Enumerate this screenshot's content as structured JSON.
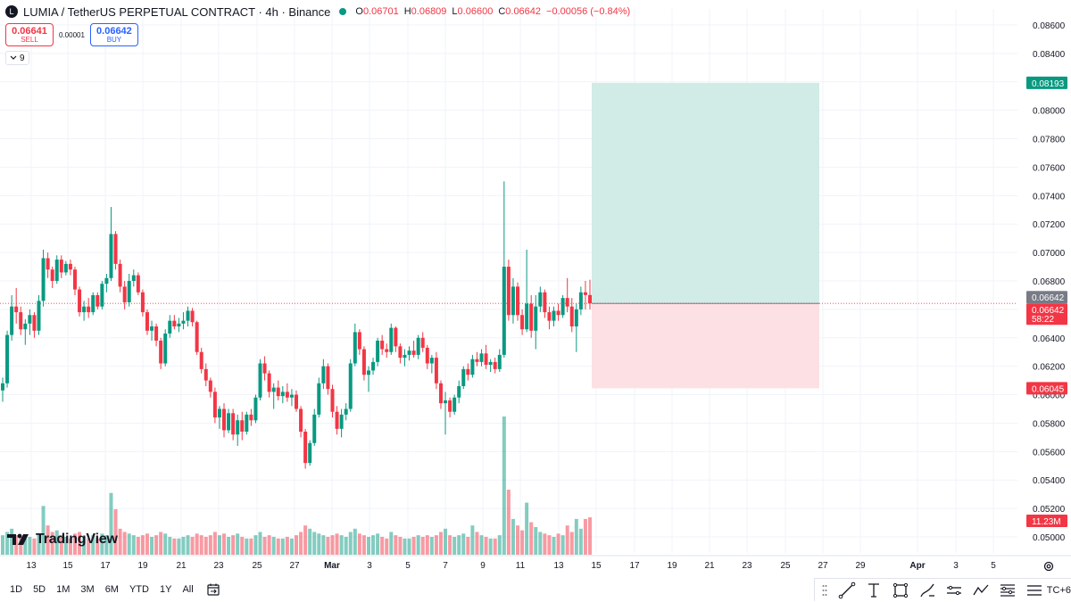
{
  "header": {
    "symbol_icon": "L",
    "title": "LUMIA / TetherUS PERPETUAL CONTRACT · 4h · Binance",
    "ohlc": [
      {
        "k": "O",
        "v": "0.06701"
      },
      {
        "k": "H",
        "v": "0.06809"
      },
      {
        "k": "L",
        "v": "0.06600"
      },
      {
        "k": "C",
        "v": "0.06642"
      },
      {
        "k": "",
        "v": "−0.00056 (−0.84%)"
      }
    ]
  },
  "trade": {
    "sell_price": "0.06641",
    "sell_label": "SELL",
    "spread": "0.00001",
    "buy_price": "0.06642",
    "buy_label": "BUY"
  },
  "indicators": {
    "count": "9"
  },
  "watermark": {
    "text": "TradingView"
  },
  "price_axis": {
    "ticks": [
      "0.08600",
      "0.08400",
      "0.08200",
      "0.08000",
      "0.07800",
      "0.07600",
      "0.07400",
      "0.07200",
      "0.07000",
      "0.06800",
      "0.06600",
      "0.06400",
      "0.06200",
      "0.06000",
      "0.05800",
      "0.05600",
      "0.05400",
      "0.05200",
      "0.05000"
    ],
    "labels": [
      {
        "text": "0.08193",
        "value": 0.08193,
        "color": "#089981"
      },
      {
        "text": "0.06642",
        "value": 0.06642,
        "color": "#787b86"
      },
      {
        "text": "0.06642",
        "value": 0.06642,
        "color": "#f23645",
        "sub": "58:22"
      },
      {
        "text": "0.06045",
        "value": 0.06045,
        "color": "#f23645"
      },
      {
        "text": "11.23M",
        "value": null,
        "color": "#f23645"
      }
    ]
  },
  "time_axis": {
    "labels": [
      "13",
      "15",
      "17",
      "19",
      "21",
      "23",
      "25",
      "27",
      "Mar",
      "3",
      "5",
      "7",
      "9",
      "11",
      "13",
      "15",
      "17",
      "19",
      "21",
      "23",
      "25",
      "27",
      "29",
      "Apr",
      "3",
      "5"
    ]
  },
  "position": {
    "entry": 0.06642,
    "target": 0.08193,
    "stop": 0.06045,
    "target_color": "#d1ebe6",
    "stop_color": "#fde0e3"
  },
  "timeframes": [
    "1D",
    "5D",
    "1M",
    "3M",
    "6M",
    "YTD",
    "1Y",
    "All"
  ],
  "drawing_tools": {
    "icons": [
      "drag-handle-icon",
      "trend-line-icon",
      "text-cursor-icon",
      "rectangle-icon",
      "brush-icon",
      "parallel-channel-icon",
      "polyline-icon",
      "fib-retracement-icon",
      "more-tools-icon"
    ],
    "timezone": "TC+6"
  },
  "chart_data": {
    "type": "candlestick",
    "interval": "4h",
    "ylim": [
      0.0495,
      0.0875
    ],
    "colors": {
      "up": "#089981",
      "down": "#f23645"
    },
    "candles": [
      {
        "o": 0.0603,
        "h": 0.0612,
        "l": 0.0595,
        "c": 0.0608,
        "v": 12
      },
      {
        "o": 0.0608,
        "h": 0.0645,
        "l": 0.0605,
        "c": 0.0642,
        "v": 14
      },
      {
        "o": 0.0642,
        "h": 0.067,
        "l": 0.0638,
        "c": 0.0662,
        "v": 16
      },
      {
        "o": 0.0662,
        "h": 0.0675,
        "l": 0.065,
        "c": 0.0658,
        "v": 12
      },
      {
        "o": 0.0658,
        "h": 0.0662,
        "l": 0.0642,
        "c": 0.0646,
        "v": 11
      },
      {
        "o": 0.0646,
        "h": 0.0653,
        "l": 0.0635,
        "c": 0.065,
        "v": 10
      },
      {
        "o": 0.065,
        "h": 0.066,
        "l": 0.0642,
        "c": 0.0656,
        "v": 11
      },
      {
        "o": 0.0656,
        "h": 0.0658,
        "l": 0.064,
        "c": 0.0645,
        "v": 10
      },
      {
        "o": 0.0645,
        "h": 0.067,
        "l": 0.0642,
        "c": 0.0666,
        "v": 13
      },
      {
        "o": 0.0666,
        "h": 0.0702,
        "l": 0.0662,
        "c": 0.0696,
        "v": 30
      },
      {
        "o": 0.0696,
        "h": 0.07,
        "l": 0.0682,
        "c": 0.0688,
        "v": 18
      },
      {
        "o": 0.0688,
        "h": 0.069,
        "l": 0.0675,
        "c": 0.068,
        "v": 14
      },
      {
        "o": 0.068,
        "h": 0.0698,
        "l": 0.0678,
        "c": 0.0695,
        "v": 15
      },
      {
        "o": 0.0695,
        "h": 0.0698,
        "l": 0.0682,
        "c": 0.0686,
        "v": 12
      },
      {
        "o": 0.0686,
        "h": 0.0694,
        "l": 0.0684,
        "c": 0.0692,
        "v": 11
      },
      {
        "o": 0.0692,
        "h": 0.0695,
        "l": 0.0684,
        "c": 0.0688,
        "v": 10
      },
      {
        "o": 0.0688,
        "h": 0.069,
        "l": 0.067,
        "c": 0.0674,
        "v": 13
      },
      {
        "o": 0.0674,
        "h": 0.0676,
        "l": 0.0655,
        "c": 0.0658,
        "v": 14
      },
      {
        "o": 0.0658,
        "h": 0.0666,
        "l": 0.0652,
        "c": 0.0662,
        "v": 11
      },
      {
        "o": 0.0662,
        "h": 0.0668,
        "l": 0.0654,
        "c": 0.0658,
        "v": 10
      },
      {
        "o": 0.0658,
        "h": 0.0672,
        "l": 0.0656,
        "c": 0.067,
        "v": 12
      },
      {
        "o": 0.067,
        "h": 0.0672,
        "l": 0.066,
        "c": 0.0662,
        "v": 10
      },
      {
        "o": 0.0662,
        "h": 0.068,
        "l": 0.066,
        "c": 0.0678,
        "v": 13
      },
      {
        "o": 0.0678,
        "h": 0.0685,
        "l": 0.0672,
        "c": 0.0682,
        "v": 12
      },
      {
        "o": 0.0682,
        "h": 0.0732,
        "l": 0.068,
        "c": 0.0713,
        "v": 38
      },
      {
        "o": 0.0713,
        "h": 0.0715,
        "l": 0.0688,
        "c": 0.0692,
        "v": 28
      },
      {
        "o": 0.0692,
        "h": 0.0695,
        "l": 0.0672,
        "c": 0.0676,
        "v": 16
      },
      {
        "o": 0.0676,
        "h": 0.068,
        "l": 0.066,
        "c": 0.0665,
        "v": 14
      },
      {
        "o": 0.0665,
        "h": 0.0685,
        "l": 0.0662,
        "c": 0.068,
        "v": 13
      },
      {
        "o": 0.068,
        "h": 0.0688,
        "l": 0.0676,
        "c": 0.0684,
        "v": 12
      },
      {
        "o": 0.0684,
        "h": 0.0686,
        "l": 0.067,
        "c": 0.0672,
        "v": 11
      },
      {
        "o": 0.0672,
        "h": 0.0674,
        "l": 0.0655,
        "c": 0.0658,
        "v": 12
      },
      {
        "o": 0.0658,
        "h": 0.066,
        "l": 0.0642,
        "c": 0.0645,
        "v": 13
      },
      {
        "o": 0.0645,
        "h": 0.0652,
        "l": 0.0638,
        "c": 0.0648,
        "v": 11
      },
      {
        "o": 0.0648,
        "h": 0.065,
        "l": 0.0634,
        "c": 0.0638,
        "v": 12
      },
      {
        "o": 0.0638,
        "h": 0.064,
        "l": 0.0618,
        "c": 0.0622,
        "v": 14
      },
      {
        "o": 0.0622,
        "h": 0.0646,
        "l": 0.062,
        "c": 0.0643,
        "v": 13
      },
      {
        "o": 0.0643,
        "h": 0.0656,
        "l": 0.064,
        "c": 0.0652,
        "v": 11
      },
      {
        "o": 0.0652,
        "h": 0.0656,
        "l": 0.0646,
        "c": 0.0648,
        "v": 10
      },
      {
        "o": 0.0648,
        "h": 0.0654,
        "l": 0.0644,
        "c": 0.065,
        "v": 10
      },
      {
        "o": 0.065,
        "h": 0.0658,
        "l": 0.0646,
        "c": 0.0652,
        "v": 11
      },
      {
        "o": 0.0652,
        "h": 0.0662,
        "l": 0.0648,
        "c": 0.0659,
        "v": 12
      },
      {
        "o": 0.0659,
        "h": 0.0661,
        "l": 0.0648,
        "c": 0.0651,
        "v": 11
      },
      {
        "o": 0.0651,
        "h": 0.0652,
        "l": 0.0628,
        "c": 0.063,
        "v": 13
      },
      {
        "o": 0.063,
        "h": 0.0633,
        "l": 0.0615,
        "c": 0.0618,
        "v": 12
      },
      {
        "o": 0.0618,
        "h": 0.0622,
        "l": 0.0606,
        "c": 0.061,
        "v": 11
      },
      {
        "o": 0.061,
        "h": 0.0612,
        "l": 0.0598,
        "c": 0.0602,
        "v": 12
      },
      {
        "o": 0.0602,
        "h": 0.0605,
        "l": 0.058,
        "c": 0.0584,
        "v": 14
      },
      {
        "o": 0.0584,
        "h": 0.0592,
        "l": 0.0576,
        "c": 0.059,
        "v": 12
      },
      {
        "o": 0.059,
        "h": 0.0594,
        "l": 0.057,
        "c": 0.0575,
        "v": 13
      },
      {
        "o": 0.0575,
        "h": 0.059,
        "l": 0.0573,
        "c": 0.0587,
        "v": 11
      },
      {
        "o": 0.0587,
        "h": 0.059,
        "l": 0.0568,
        "c": 0.0572,
        "v": 12
      },
      {
        "o": 0.0572,
        "h": 0.0586,
        "l": 0.0564,
        "c": 0.0582,
        "v": 13
      },
      {
        "o": 0.0582,
        "h": 0.0588,
        "l": 0.0568,
        "c": 0.0574,
        "v": 11
      },
      {
        "o": 0.0574,
        "h": 0.0588,
        "l": 0.0572,
        "c": 0.0586,
        "v": 10
      },
      {
        "o": 0.0586,
        "h": 0.059,
        "l": 0.0578,
        "c": 0.0582,
        "v": 10
      },
      {
        "o": 0.0582,
        "h": 0.06,
        "l": 0.058,
        "c": 0.0598,
        "v": 12
      },
      {
        "o": 0.0598,
        "h": 0.0625,
        "l": 0.0596,
        "c": 0.0622,
        "v": 14
      },
      {
        "o": 0.0622,
        "h": 0.0627,
        "l": 0.061,
        "c": 0.0615,
        "v": 11
      },
      {
        "o": 0.0615,
        "h": 0.0617,
        "l": 0.0598,
        "c": 0.0602,
        "v": 12
      },
      {
        "o": 0.0602,
        "h": 0.0608,
        "l": 0.059,
        "c": 0.0605,
        "v": 11
      },
      {
        "o": 0.0605,
        "h": 0.061,
        "l": 0.0596,
        "c": 0.0599,
        "v": 10
      },
      {
        "o": 0.0599,
        "h": 0.0606,
        "l": 0.0594,
        "c": 0.0602,
        "v": 10
      },
      {
        "o": 0.0602,
        "h": 0.0608,
        "l": 0.0595,
        "c": 0.0598,
        "v": 11
      },
      {
        "o": 0.0598,
        "h": 0.0604,
        "l": 0.0592,
        "c": 0.06,
        "v": 10
      },
      {
        "o": 0.06,
        "h": 0.0603,
        "l": 0.0588,
        "c": 0.059,
        "v": 12
      },
      {
        "o": 0.059,
        "h": 0.0592,
        "l": 0.057,
        "c": 0.0574,
        "v": 14
      },
      {
        "o": 0.0574,
        "h": 0.0576,
        "l": 0.0548,
        "c": 0.0552,
        "v": 18
      },
      {
        "o": 0.0552,
        "h": 0.0568,
        "l": 0.055,
        "c": 0.0566,
        "v": 16
      },
      {
        "o": 0.0566,
        "h": 0.059,
        "l": 0.0564,
        "c": 0.0586,
        "v": 14
      },
      {
        "o": 0.0586,
        "h": 0.0612,
        "l": 0.0584,
        "c": 0.0608,
        "v": 13
      },
      {
        "o": 0.0608,
        "h": 0.0625,
        "l": 0.0604,
        "c": 0.062,
        "v": 12
      },
      {
        "o": 0.062,
        "h": 0.0622,
        "l": 0.06,
        "c": 0.0604,
        "v": 11
      },
      {
        "o": 0.0604,
        "h": 0.0607,
        "l": 0.0584,
        "c": 0.0588,
        "v": 12
      },
      {
        "o": 0.0588,
        "h": 0.0592,
        "l": 0.0572,
        "c": 0.0576,
        "v": 13
      },
      {
        "o": 0.0576,
        "h": 0.059,
        "l": 0.057,
        "c": 0.0586,
        "v": 12
      },
      {
        "o": 0.0586,
        "h": 0.0594,
        "l": 0.0582,
        "c": 0.059,
        "v": 11
      },
      {
        "o": 0.059,
        "h": 0.0625,
        "l": 0.0588,
        "c": 0.0622,
        "v": 14
      },
      {
        "o": 0.0622,
        "h": 0.065,
        "l": 0.062,
        "c": 0.0644,
        "v": 16
      },
      {
        "o": 0.0644,
        "h": 0.0646,
        "l": 0.0628,
        "c": 0.0632,
        "v": 13
      },
      {
        "o": 0.0632,
        "h": 0.0634,
        "l": 0.061,
        "c": 0.0614,
        "v": 12
      },
      {
        "o": 0.0614,
        "h": 0.062,
        "l": 0.0602,
        "c": 0.0617,
        "v": 11
      },
      {
        "o": 0.0617,
        "h": 0.0626,
        "l": 0.0614,
        "c": 0.0623,
        "v": 12
      },
      {
        "o": 0.0623,
        "h": 0.064,
        "l": 0.062,
        "c": 0.0638,
        "v": 13
      },
      {
        "o": 0.0638,
        "h": 0.0642,
        "l": 0.0628,
        "c": 0.0632,
        "v": 11
      },
      {
        "o": 0.0632,
        "h": 0.0636,
        "l": 0.0626,
        "c": 0.063,
        "v": 10
      },
      {
        "o": 0.063,
        "h": 0.065,
        "l": 0.0628,
        "c": 0.0647,
        "v": 14
      },
      {
        "o": 0.0647,
        "h": 0.0648,
        "l": 0.063,
        "c": 0.0634,
        "v": 12
      },
      {
        "o": 0.0634,
        "h": 0.0636,
        "l": 0.0622,
        "c": 0.0626,
        "v": 11
      },
      {
        "o": 0.0626,
        "h": 0.0632,
        "l": 0.062,
        "c": 0.0628,
        "v": 10
      },
      {
        "o": 0.0628,
        "h": 0.0634,
        "l": 0.0624,
        "c": 0.0631,
        "v": 10
      },
      {
        "o": 0.0631,
        "h": 0.0638,
        "l": 0.0626,
        "c": 0.0628,
        "v": 11
      },
      {
        "o": 0.0628,
        "h": 0.0642,
        "l": 0.0625,
        "c": 0.064,
        "v": 12
      },
      {
        "o": 0.064,
        "h": 0.0644,
        "l": 0.063,
        "c": 0.0633,
        "v": 11
      },
      {
        "o": 0.0633,
        "h": 0.0635,
        "l": 0.0618,
        "c": 0.0622,
        "v": 12
      },
      {
        "o": 0.0622,
        "h": 0.0628,
        "l": 0.0615,
        "c": 0.0626,
        "v": 11
      },
      {
        "o": 0.0626,
        "h": 0.063,
        "l": 0.0604,
        "c": 0.0608,
        "v": 12
      },
      {
        "o": 0.0608,
        "h": 0.061,
        "l": 0.059,
        "c": 0.0594,
        "v": 14
      },
      {
        "o": 0.0594,
        "h": 0.0602,
        "l": 0.0572,
        "c": 0.0596,
        "v": 16
      },
      {
        "o": 0.0596,
        "h": 0.0598,
        "l": 0.0584,
        "c": 0.0588,
        "v": 12
      },
      {
        "o": 0.0588,
        "h": 0.06,
        "l": 0.0586,
        "c": 0.0598,
        "v": 11
      },
      {
        "o": 0.0598,
        "h": 0.061,
        "l": 0.0594,
        "c": 0.0606,
        "v": 12
      },
      {
        "o": 0.0606,
        "h": 0.062,
        "l": 0.0604,
        "c": 0.0618,
        "v": 13
      },
      {
        "o": 0.0618,
        "h": 0.0622,
        "l": 0.061,
        "c": 0.0614,
        "v": 11
      },
      {
        "o": 0.0614,
        "h": 0.0628,
        "l": 0.0612,
        "c": 0.0625,
        "v": 18
      },
      {
        "o": 0.0625,
        "h": 0.063,
        "l": 0.062,
        "c": 0.0623,
        "v": 14
      },
      {
        "o": 0.0623,
        "h": 0.0632,
        "l": 0.062,
        "c": 0.0629,
        "v": 12
      },
      {
        "o": 0.0629,
        "h": 0.0635,
        "l": 0.0618,
        "c": 0.0621,
        "v": 11
      },
      {
        "o": 0.0621,
        "h": 0.0625,
        "l": 0.0616,
        "c": 0.0623,
        "v": 10
      },
      {
        "o": 0.0623,
        "h": 0.0626,
        "l": 0.0615,
        "c": 0.0618,
        "v": 10
      },
      {
        "o": 0.0618,
        "h": 0.0632,
        "l": 0.0616,
        "c": 0.0628,
        "v": 12
      },
      {
        "o": 0.0628,
        "h": 0.075,
        "l": 0.0626,
        "c": 0.069,
        "v": 85
      },
      {
        "o": 0.069,
        "h": 0.0695,
        "l": 0.0652,
        "c": 0.0656,
        "v": 40
      },
      {
        "o": 0.0656,
        "h": 0.0682,
        "l": 0.065,
        "c": 0.0676,
        "v": 22
      },
      {
        "o": 0.0676,
        "h": 0.0679,
        "l": 0.0652,
        "c": 0.0656,
        "v": 18
      },
      {
        "o": 0.0656,
        "h": 0.066,
        "l": 0.0642,
        "c": 0.0646,
        "v": 15
      },
      {
        "o": 0.0646,
        "h": 0.0702,
        "l": 0.0644,
        "c": 0.0664,
        "v": 32
      },
      {
        "o": 0.0664,
        "h": 0.067,
        "l": 0.064,
        "c": 0.0645,
        "v": 20
      },
      {
        "o": 0.0645,
        "h": 0.067,
        "l": 0.0632,
        "c": 0.0662,
        "v": 17
      },
      {
        "o": 0.0662,
        "h": 0.0676,
        "l": 0.0658,
        "c": 0.0672,
        "v": 14
      },
      {
        "o": 0.0672,
        "h": 0.0674,
        "l": 0.0654,
        "c": 0.0658,
        "v": 13
      },
      {
        "o": 0.0658,
        "h": 0.0662,
        "l": 0.0646,
        "c": 0.0652,
        "v": 12
      },
      {
        "o": 0.0652,
        "h": 0.0662,
        "l": 0.0648,
        "c": 0.0659,
        "v": 11
      },
      {
        "o": 0.0659,
        "h": 0.0664,
        "l": 0.0652,
        "c": 0.0656,
        "v": 13
      },
      {
        "o": 0.0656,
        "h": 0.067,
        "l": 0.0654,
        "c": 0.0668,
        "v": 12
      },
      {
        "o": 0.0668,
        "h": 0.0682,
        "l": 0.0658,
        "c": 0.0662,
        "v": 18
      },
      {
        "o": 0.0662,
        "h": 0.0668,
        "l": 0.0644,
        "c": 0.0648,
        "v": 14
      },
      {
        "o": 0.0648,
        "h": 0.0664,
        "l": 0.063,
        "c": 0.066,
        "v": 22
      },
      {
        "o": 0.066,
        "h": 0.0676,
        "l": 0.0656,
        "c": 0.0672,
        "v": 16
      },
      {
        "o": 0.0672,
        "h": 0.068,
        "l": 0.066,
        "c": 0.06701,
        "v": 22
      },
      {
        "o": 0.06701,
        "h": 0.06809,
        "l": 0.066,
        "c": 0.06642,
        "v": 23
      }
    ]
  }
}
